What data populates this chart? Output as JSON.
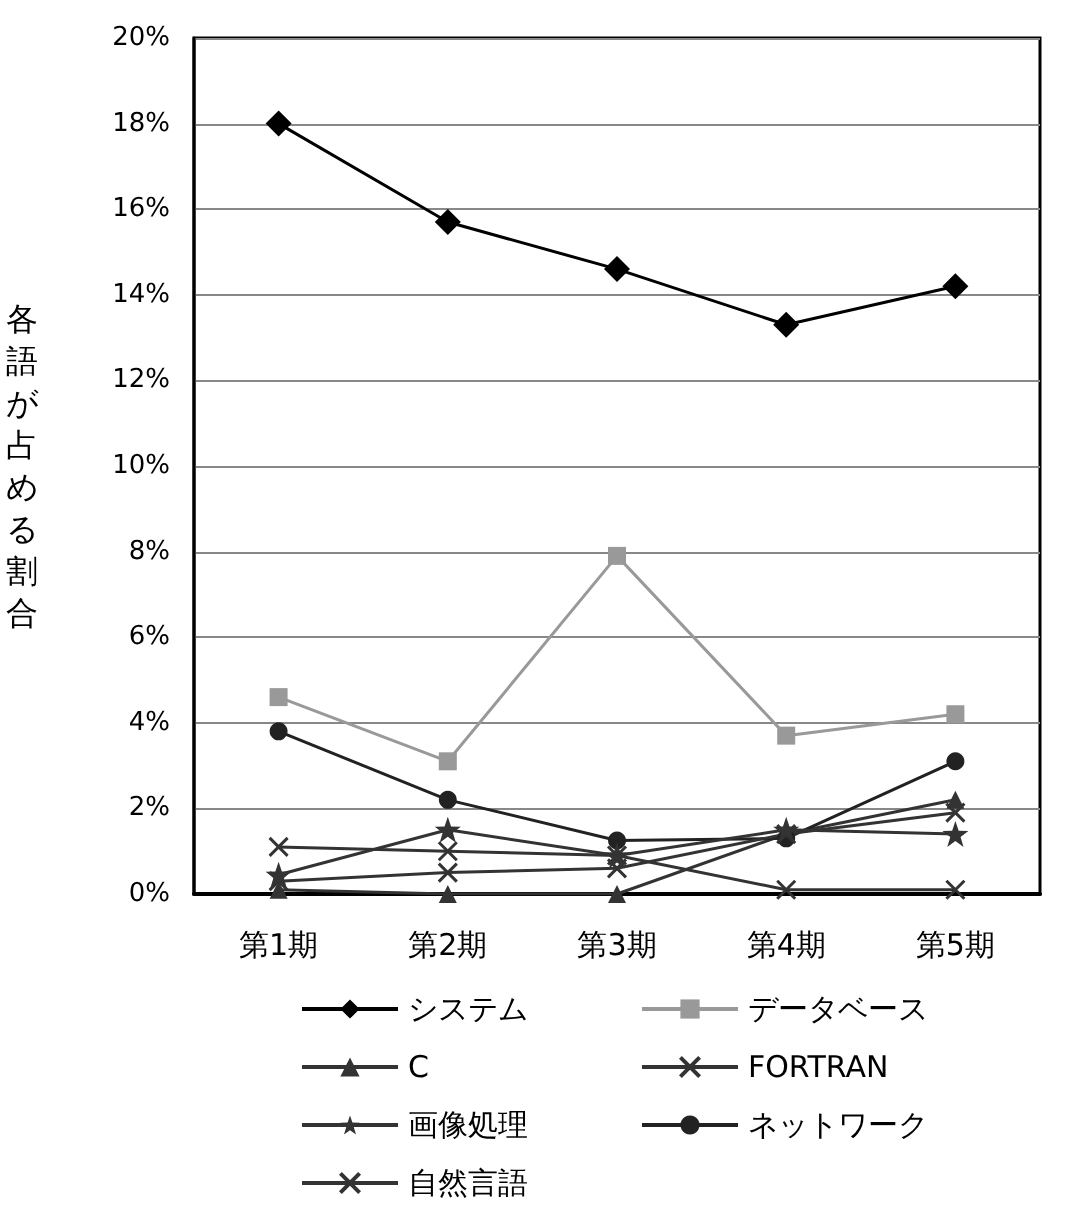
{
  "chart_data": {
    "type": "line",
    "ylabel": "各語が占める割合",
    "categories": [
      "第1期",
      "第2期",
      "第3期",
      "第4期",
      "第5期"
    ],
    "series": [
      {
        "name": "システム",
        "color": "#000000",
        "marker": "diamond",
        "values": [
          18,
          15.7,
          14.6,
          13.3,
          14.2
        ]
      },
      {
        "name": "データベース",
        "color": "#999999",
        "marker": "square",
        "values": [
          4.6,
          3.1,
          7.9,
          3.7,
          4.2
        ]
      },
      {
        "name": "C",
        "color": "#333333",
        "marker": "triangle",
        "values": [
          0.1,
          0,
          0,
          1.4,
          2.2
        ]
      },
      {
        "name": "FORTRAN",
        "color": "#333333",
        "marker": "cross",
        "values": [
          1.1,
          1,
          0.9,
          0.1,
          0.1
        ]
      },
      {
        "name": "画像処理",
        "color": "#333333",
        "marker": "star",
        "values": [
          0.45,
          1.5,
          0.9,
          1.5,
          1.4
        ]
      },
      {
        "name": "ネットワーク",
        "color": "#222222",
        "marker": "circle",
        "values": [
          3.8,
          2.2,
          1.25,
          1.3,
          3.1
        ]
      },
      {
        "name": "自然言語",
        "color": "#333333",
        "marker": "cross",
        "values": [
          0.3,
          0.5,
          0.6,
          1.4,
          1.9
        ]
      }
    ],
    "ylim": [
      0,
      20
    ],
    "yticks": [
      {
        "value": 0,
        "label": "0%"
      },
      {
        "value": 2,
        "label": "2%"
      },
      {
        "value": 4,
        "label": "4%"
      },
      {
        "value": 6,
        "label": "6%"
      },
      {
        "value": 8,
        "label": "8%"
      },
      {
        "value": 10,
        "label": "10%"
      },
      {
        "value": 12,
        "label": "12%"
      },
      {
        "value": 14,
        "label": "14%"
      },
      {
        "value": 16,
        "label": "16%"
      },
      {
        "value": 18,
        "label": "18%"
      },
      {
        "value": 20,
        "label": "20%"
      }
    ],
    "grid": "y",
    "legend": "bottom",
    "line_style": "solid"
  }
}
